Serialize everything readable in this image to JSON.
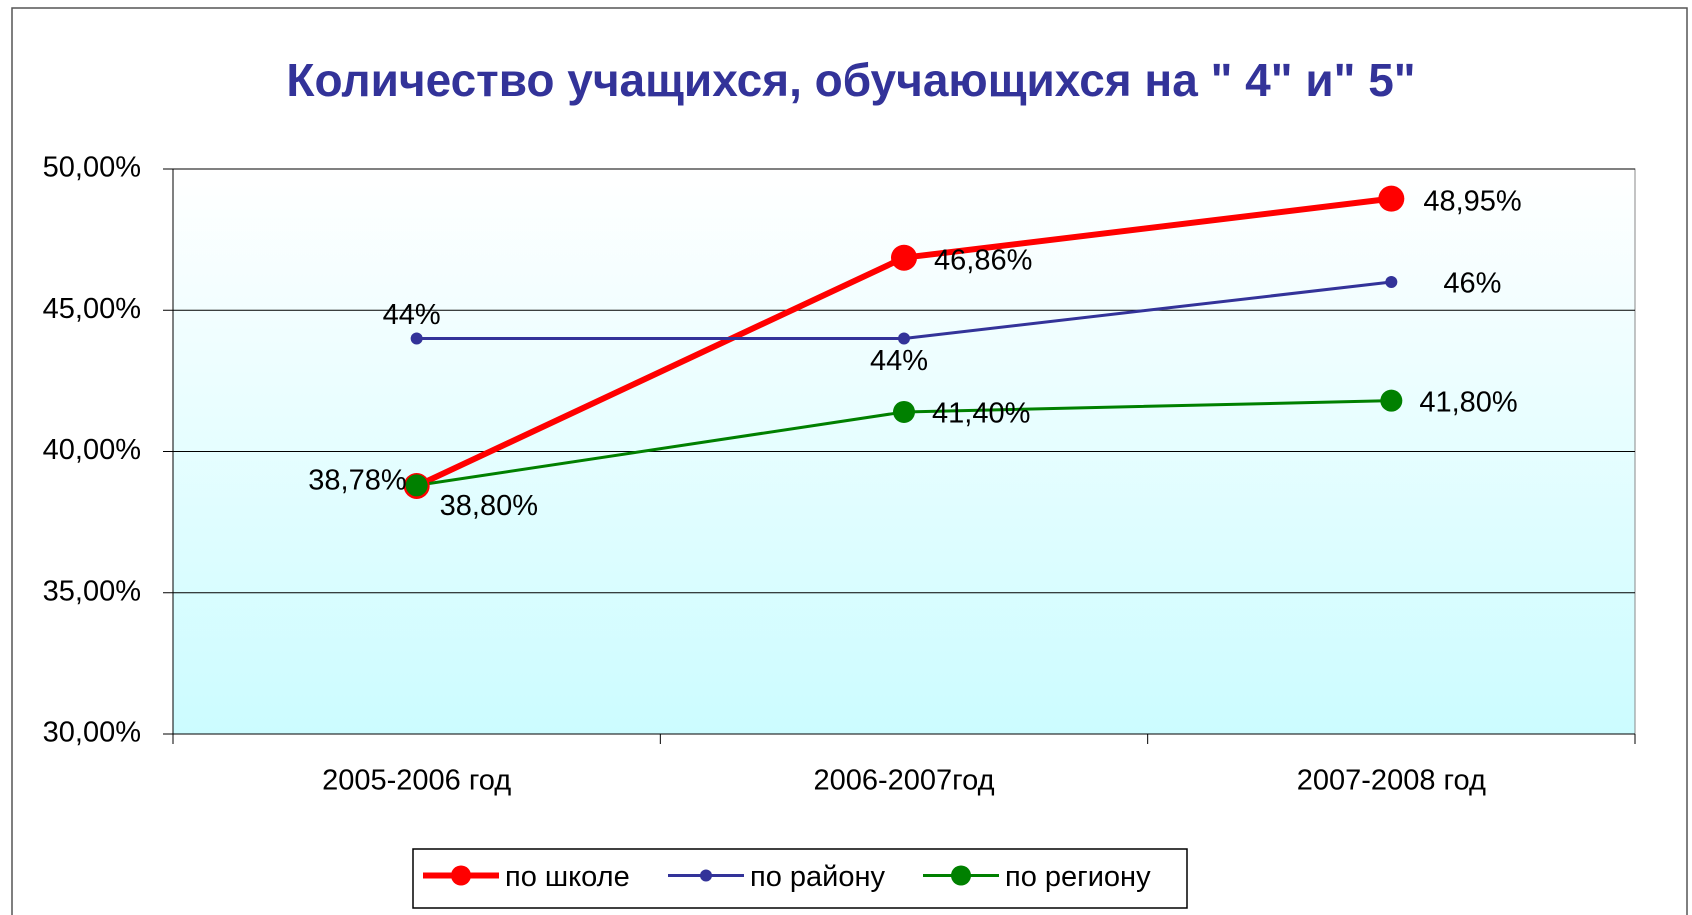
{
  "chart_data": {
    "type": "line",
    "title": "Количество учащихся, обучающихся на \" 4\"  и\" 5\"",
    "categories": [
      "2005-2006 год",
      "2006-2007год",
      "2007-2008 год"
    ],
    "series": [
      {
        "name": "по школе",
        "color": "#ff0000",
        "values": [
          38.78,
          46.86,
          48.95
        ],
        "value_labels": [
          "38,78%",
          "46,86%",
          "48,95%"
        ]
      },
      {
        "name": "по району",
        "color": "#333399",
        "values": [
          44,
          44,
          46
        ],
        "value_labels": [
          "44%",
          "44%",
          "46%"
        ]
      },
      {
        "name": "по региону",
        "color": "#008000",
        "values": [
          38.8,
          41.4,
          41.8
        ],
        "value_labels": [
          "38,80%",
          "41,40%",
          "41,80%"
        ]
      }
    ],
    "ylim": [
      30,
      50
    ],
    "yticks": [
      {
        "value": 30,
        "label": "30,00%"
      },
      {
        "value": 35,
        "label": "35,00%"
      },
      {
        "value": 40,
        "label": "40,00%"
      },
      {
        "value": 45,
        "label": "45,00%"
      },
      {
        "value": 50,
        "label": "50,00%"
      }
    ],
    "grid": true,
    "legend": "bottom"
  }
}
